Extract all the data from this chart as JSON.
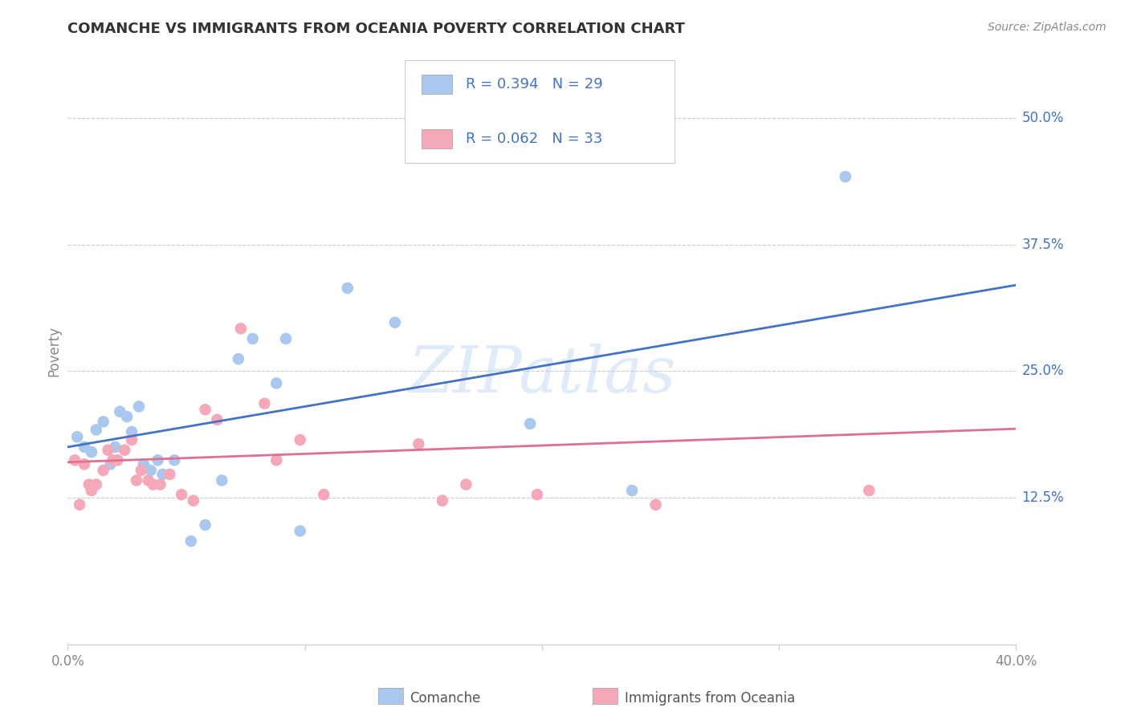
{
  "title": "COMANCHE VS IMMIGRANTS FROM OCEANIA POVERTY CORRELATION CHART",
  "source": "Source: ZipAtlas.com",
  "ylabel": "Poverty",
  "ytick_labels": [
    "12.5%",
    "25.0%",
    "37.5%",
    "50.0%"
  ],
  "ytick_values": [
    0.125,
    0.25,
    0.375,
    0.5
  ],
  "xlim": [
    0.0,
    0.4
  ],
  "ylim": [
    -0.02,
    0.56
  ],
  "watermark": "ZIPatlas",
  "legend_blue_r": "R = 0.394",
  "legend_blue_n": "N = 29",
  "legend_pink_r": "R = 0.062",
  "legend_pink_n": "N = 33",
  "legend_blue_label": "Comanche",
  "legend_pink_label": "Immigrants from Oceania",
  "blue_scatter_color": "#a8c8f0",
  "pink_scatter_color": "#f4a8b8",
  "blue_line_color": "#4472c4",
  "pink_line_color": "#e07090",
  "legend_text_color": "#4472c4",
  "ytick_color": "#4472c4",
  "title_color": "#333333",
  "source_color": "#888888",
  "ylabel_color": "#888888",
  "xtick_color": "#888888",
  "grid_color": "#cccccc",
  "background_color": "#ffffff",
  "blue_line_start_y": 0.175,
  "blue_line_end_y": 0.335,
  "pink_line_start_y": 0.16,
  "pink_line_end_y": 0.193,
  "blue_scatter": [
    [
      0.004,
      0.185
    ],
    [
      0.007,
      0.175
    ],
    [
      0.01,
      0.17
    ],
    [
      0.012,
      0.192
    ],
    [
      0.015,
      0.2
    ],
    [
      0.018,
      0.158
    ],
    [
      0.02,
      0.175
    ],
    [
      0.022,
      0.21
    ],
    [
      0.025,
      0.205
    ],
    [
      0.027,
      0.19
    ],
    [
      0.03,
      0.215
    ],
    [
      0.032,
      0.158
    ],
    [
      0.035,
      0.152
    ],
    [
      0.038,
      0.162
    ],
    [
      0.04,
      0.148
    ],
    [
      0.045,
      0.162
    ],
    [
      0.052,
      0.082
    ],
    [
      0.058,
      0.098
    ],
    [
      0.065,
      0.142
    ],
    [
      0.072,
      0.262
    ],
    [
      0.078,
      0.282
    ],
    [
      0.088,
      0.238
    ],
    [
      0.092,
      0.282
    ],
    [
      0.098,
      0.092
    ],
    [
      0.118,
      0.332
    ],
    [
      0.138,
      0.298
    ],
    [
      0.195,
      0.198
    ],
    [
      0.238,
      0.132
    ],
    [
      0.328,
      0.442
    ]
  ],
  "pink_scatter": [
    [
      0.003,
      0.162
    ],
    [
      0.005,
      0.118
    ],
    [
      0.007,
      0.158
    ],
    [
      0.009,
      0.138
    ],
    [
      0.01,
      0.132
    ],
    [
      0.012,
      0.138
    ],
    [
      0.015,
      0.152
    ],
    [
      0.017,
      0.172
    ],
    [
      0.019,
      0.162
    ],
    [
      0.021,
      0.162
    ],
    [
      0.024,
      0.172
    ],
    [
      0.027,
      0.182
    ],
    [
      0.029,
      0.142
    ],
    [
      0.031,
      0.152
    ],
    [
      0.034,
      0.142
    ],
    [
      0.036,
      0.138
    ],
    [
      0.039,
      0.138
    ],
    [
      0.043,
      0.148
    ],
    [
      0.048,
      0.128
    ],
    [
      0.053,
      0.122
    ],
    [
      0.058,
      0.212
    ],
    [
      0.063,
      0.202
    ],
    [
      0.073,
      0.292
    ],
    [
      0.083,
      0.218
    ],
    [
      0.088,
      0.162
    ],
    [
      0.098,
      0.182
    ],
    [
      0.108,
      0.128
    ],
    [
      0.148,
      0.178
    ],
    [
      0.158,
      0.122
    ],
    [
      0.168,
      0.138
    ],
    [
      0.198,
      0.128
    ],
    [
      0.248,
      0.118
    ],
    [
      0.338,
      0.132
    ]
  ]
}
